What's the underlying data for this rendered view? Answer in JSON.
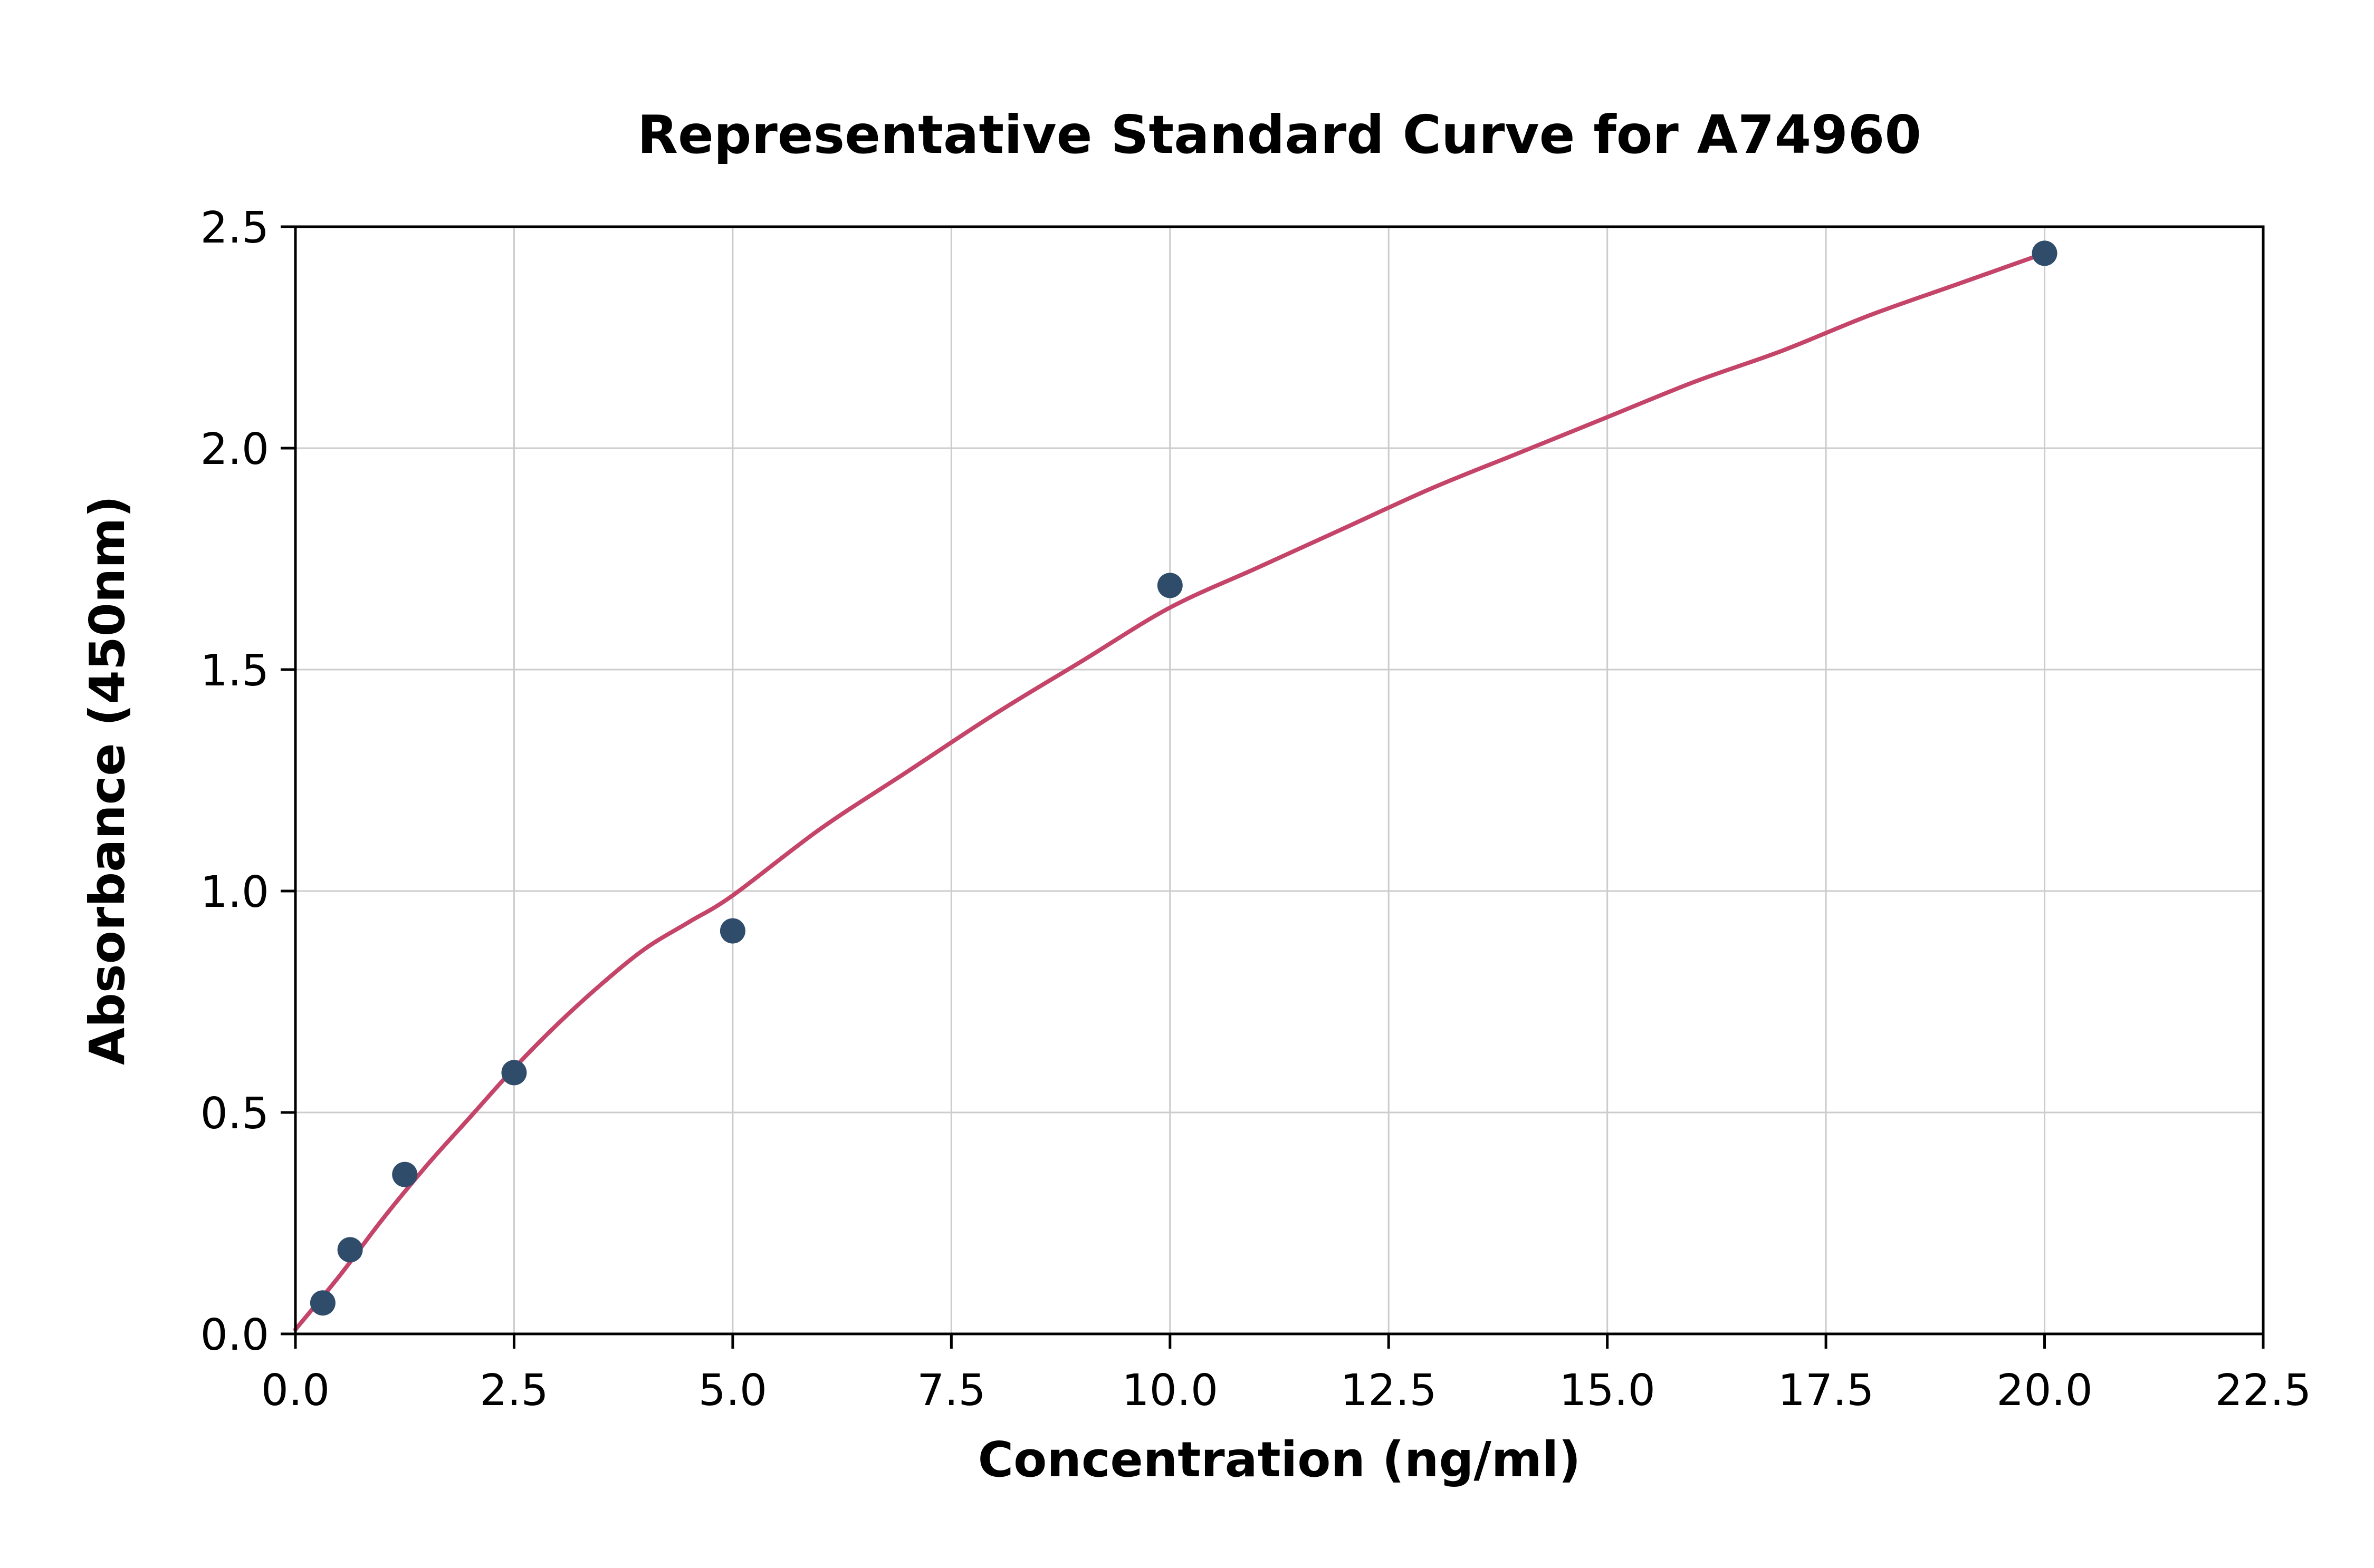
{
  "page": {
    "background": "#ffffff"
  },
  "chart_data": {
    "type": "scatter",
    "title": "Representative Standard Curve for A74960",
    "xlabel": "Concentration (ng/ml)",
    "ylabel": "Absorbance (450nm)",
    "xlim": [
      0,
      22.5
    ],
    "ylim": [
      0,
      2.5
    ],
    "grid": true,
    "legend": "none",
    "x_tick_values": [
      0.0,
      2.5,
      5.0,
      7.5,
      10.0,
      12.5,
      15.0,
      17.5,
      20.0,
      22.5
    ],
    "x_tick_labels": [
      "0.0",
      "2.5",
      "5.0",
      "7.5",
      "10.0",
      "12.5",
      "15.0",
      "17.5",
      "20.0",
      "22.5"
    ],
    "y_tick_values": [
      0.0,
      0.5,
      1.0,
      1.5,
      2.0,
      2.5
    ],
    "y_tick_labels": [
      "0.0",
      "0.5",
      "1.0",
      "1.5",
      "2.0",
      "2.5"
    ],
    "points": {
      "x": [
        0.313,
        0.625,
        1.25,
        2.5,
        5.0,
        10.0,
        20.0
      ],
      "y": [
        0.07,
        0.19,
        0.36,
        0.59,
        0.91,
        1.69,
        2.44
      ]
    },
    "fit_curve": {
      "x": [
        0,
        0.5,
        1,
        1.5,
        2,
        2.5,
        3,
        3.5,
        4,
        4.5,
        5,
        6,
        7,
        8,
        9,
        10,
        11,
        12,
        13,
        14,
        15,
        16,
        17,
        18,
        19,
        20
      ],
      "y": [
        0.01,
        0.13,
        0.26,
        0.38,
        0.49,
        0.6,
        0.7,
        0.79,
        0.87,
        0.93,
        0.99,
        1.14,
        1.27,
        1.4,
        1.52,
        1.64,
        1.73,
        1.82,
        1.91,
        1.99,
        2.07,
        2.15,
        2.22,
        2.3,
        2.37,
        2.44
      ]
    },
    "colors": {
      "curve": "#c44569",
      "points": "#2f4c6a",
      "grid": "#cccccc",
      "frame": "#000000",
      "text": "#000000",
      "background": "#ffffff"
    }
  }
}
